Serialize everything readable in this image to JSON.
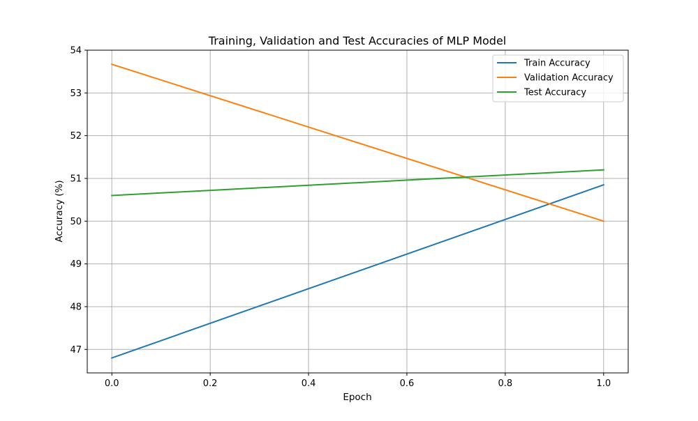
{
  "chart_data": {
    "type": "line",
    "title": "Training, Validation and Test Accuracies of MLP Model",
    "xlabel": "Epoch",
    "ylabel": "Accuracy (%)",
    "x": [
      0.0,
      1.0
    ],
    "xlim": [
      -0.05,
      1.05
    ],
    "ylim": [
      46.45,
      54.0
    ],
    "xticks": [
      0.0,
      0.2,
      0.4,
      0.6,
      0.8,
      1.0
    ],
    "xtick_labels": [
      "0.0",
      "0.2",
      "0.4",
      "0.6",
      "0.8",
      "1.0"
    ],
    "yticks": [
      47,
      48,
      49,
      50,
      51,
      52,
      53,
      54
    ],
    "ytick_labels": [
      "47",
      "48",
      "49",
      "50",
      "51",
      "52",
      "53",
      "54"
    ],
    "grid": true,
    "legend_position": "top-right",
    "series": [
      {
        "name": "Train Accuracy",
        "values": [
          46.8,
          50.85
        ],
        "color": "#1f77b4"
      },
      {
        "name": "Validation Accuracy",
        "values": [
          53.67,
          50.0
        ],
        "color": "#ff7f0e"
      },
      {
        "name": "Test Accuracy",
        "values": [
          50.6,
          51.2
        ],
        "color": "#2ca02c"
      }
    ]
  }
}
